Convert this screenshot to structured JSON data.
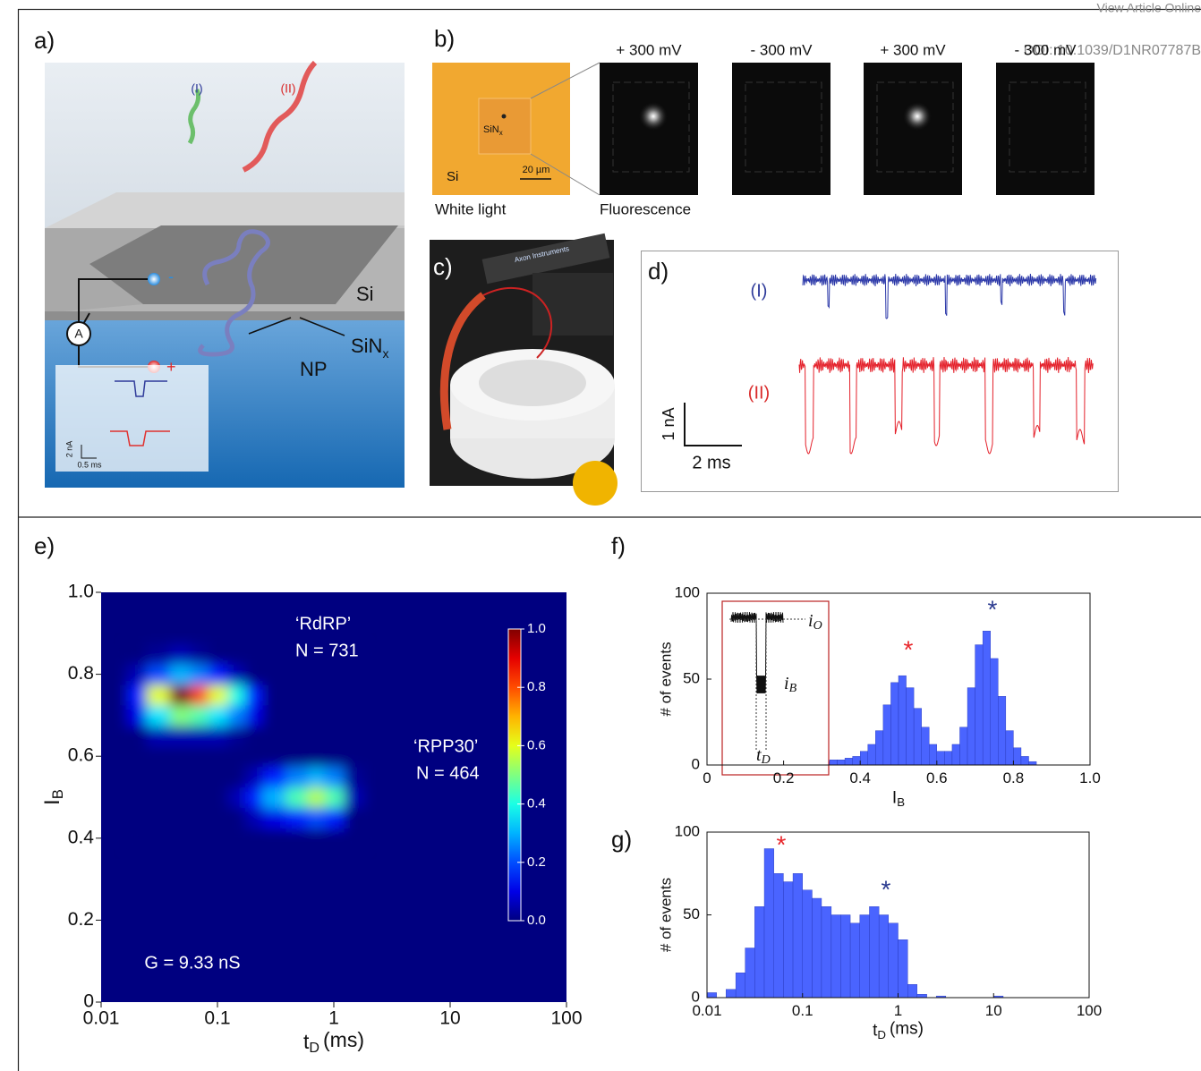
{
  "header": {
    "link": "View Article Online",
    "doi": "DOI: 10.1039/D1NR07787B"
  },
  "panel_a": {
    "label": "a)",
    "strand_1": "(I)",
    "strand_2": "(II)",
    "si": "Si",
    "sinx": "SiN",
    "sinx_sub": "x",
    "np": "NP",
    "ammeter": "A",
    "minus": "-",
    "plus": "+",
    "scale_y": "2 nA",
    "scale_x": "0.5 ms"
  },
  "panel_b": {
    "label": "b)",
    "si": "Si",
    "sinx": "SiN",
    "sinx_sub": "x",
    "scale": "20 µm",
    "white_light": "White light",
    "fluorescence": "Fluorescence",
    "voltages": [
      "+ 300 mV",
      "- 300 mV",
      "+ 300 mV",
      "- 300 mV"
    ]
  },
  "panel_c": {
    "label": "c)",
    "brand": "Axon Instruments"
  },
  "panel_d": {
    "label": "d)",
    "trace_1": "(I)",
    "trace_2": "(II)",
    "scale_y": "1 nA",
    "scale_x": "2 ms"
  },
  "chart_data": [
    {
      "panel": "e)",
      "type": "heatmap",
      "log_x": true,
      "colormap": "jet",
      "xlabel": "t",
      "xlabel_sub": "D",
      "xlabel_unit": "(ms)",
      "ylabel": "I",
      "ylabel_sub": "B",
      "x": [
        0.02,
        0.03,
        0.05,
        0.07,
        0.1,
        0.15,
        0.2,
        0.3,
        0.5,
        0.7,
        1,
        1.5
      ],
      "y": [
        0.4,
        0.45,
        0.5,
        0.55,
        0.6,
        0.65,
        0.7,
        0.75,
        0.8,
        0.85
      ],
      "z": [
        [
          0,
          0,
          0,
          0,
          0,
          0,
          0,
          0,
          0,
          0,
          0,
          0
        ],
        [
          0,
          0,
          0,
          0,
          0,
          0,
          0.05,
          0.1,
          0.15,
          0.2,
          0.15,
          0
        ],
        [
          0,
          0,
          0,
          0,
          0,
          0.05,
          0.15,
          0.3,
          0.45,
          0.55,
          0.45,
          0.05
        ],
        [
          0,
          0,
          0,
          0,
          0,
          0,
          0.05,
          0.15,
          0.25,
          0.3,
          0.25,
          0.02
        ],
        [
          0,
          0,
          0,
          0,
          0,
          0,
          0,
          0,
          0,
          0,
          0,
          0
        ],
        [
          0,
          0.05,
          0.05,
          0.05,
          0.05,
          0.02,
          0,
          0,
          0,
          0,
          0,
          0
        ],
        [
          0.1,
          0.35,
          0.5,
          0.45,
          0.35,
          0.25,
          0.1,
          0,
          0,
          0,
          0,
          0
        ],
        [
          0.15,
          0.6,
          1.0,
          0.8,
          0.6,
          0.4,
          0.15,
          0,
          0,
          0,
          0,
          0
        ],
        [
          0.05,
          0.2,
          0.3,
          0.25,
          0.15,
          0.05,
          0,
          0,
          0,
          0,
          0,
          0
        ],
        [
          0,
          0.02,
          0.05,
          0.02,
          0,
          0,
          0,
          0,
          0,
          0,
          0,
          0
        ]
      ],
      "xlim": [
        0.01,
        100
      ],
      "ylim": [
        0,
        1
      ],
      "xticks": [
        0.01,
        0.1,
        1,
        10,
        100
      ],
      "yticks": [
        0,
        0.2,
        0.4,
        0.6,
        0.8,
        {
          "value": 1,
          "label": "1.0"
        }
      ],
      "clim": [
        0,
        1
      ],
      "cticks": [
        {
          "value": 0,
          "label": "0.0"
        },
        0.2,
        0.4,
        0.6,
        0.8,
        {
          "value": 1,
          "label": "1.0"
        }
      ],
      "annotations": [
        "‘RdRP’",
        "N = 731",
        "‘RPP30’",
        "N = 464",
        "G = 9.33 nS"
      ]
    },
    {
      "panel": "f)",
      "type": "histogram",
      "log_x": false,
      "color": "#4a64ff",
      "xlabel": "I",
      "xlabel_sub": "B",
      "ylabel": "# of events",
      "bins": [
        0,
        0.02,
        0.04,
        0.06,
        0.08,
        0.1,
        0.12,
        0.14,
        0.16,
        0.18,
        0.2,
        0.22,
        0.24,
        0.26,
        0.28,
        0.3,
        0.32,
        0.34,
        0.36,
        0.38,
        0.4,
        0.42,
        0.44,
        0.46,
        0.48,
        0.5,
        0.52,
        0.54,
        0.56,
        0.58,
        0.6,
        0.62,
        0.64,
        0.66,
        0.68,
        0.7,
        0.72,
        0.74,
        0.76,
        0.78,
        0.8,
        0.82,
        0.84,
        0.86,
        0.88,
        0.9,
        0.92,
        0.94,
        0.96,
        0.98,
        1.0
      ],
      "values": [
        0,
        0,
        0,
        0,
        0,
        0,
        1,
        1,
        0,
        1,
        1,
        1,
        2,
        1,
        2,
        2,
        3,
        3,
        4,
        5,
        8,
        12,
        20,
        35,
        48,
        52,
        45,
        33,
        22,
        12,
        8,
        8,
        12,
        22,
        45,
        70,
        78,
        62,
        40,
        20,
        10,
        5,
        2,
        0,
        0,
        0,
        0,
        0,
        0,
        0
      ],
      "xlim": [
        0,
        1
      ],
      "ylim": [
        0,
        100
      ],
      "xticks": [
        0,
        0.2,
        0.4,
        0.6,
        0.8,
        {
          "value": 1,
          "label": "1.0"
        }
      ],
      "yticks": [
        0,
        50,
        100
      ],
      "annotations": [
        {
          "text": "*",
          "color": "#e8262b"
        },
        {
          "text": "*",
          "color": "#2a3a8f"
        }
      ],
      "inset": {
        "io": "i",
        "io_sub": "O",
        "ib": "i",
        "ib_sub": "B",
        "td": "t",
        "td_sub": "D"
      }
    },
    {
      "panel": "g)",
      "type": "histogram",
      "log_x": true,
      "color": "#4a64ff",
      "xlabel": "t",
      "xlabel_sub": "D",
      "xlabel_unit": "(ms)",
      "ylabel": "# of events",
      "bins": [
        0.01,
        0.0126,
        0.0158,
        0.02,
        0.0251,
        0.0316,
        0.0398,
        0.0501,
        0.0631,
        0.0794,
        0.1,
        0.126,
        0.158,
        0.2,
        0.251,
        0.316,
        0.398,
        0.501,
        0.631,
        0.794,
        1,
        1.26,
        1.58,
        2,
        2.51,
        3.16,
        3.98,
        5.01,
        6.31,
        7.94,
        10,
        12.6,
        15.8,
        20,
        25.1,
        31.6,
        39.8,
        50.1,
        63.1,
        79.4,
        100
      ],
      "values": [
        3,
        0,
        5,
        15,
        30,
        55,
        90,
        75,
        70,
        75,
        65,
        60,
        55,
        50,
        50,
        45,
        50,
        55,
        50,
        45,
        35,
        8,
        2,
        0,
        1,
        0,
        0,
        0,
        0,
        0,
        1,
        0,
        0,
        0,
        0,
        0,
        0,
        0,
        0,
        0
      ],
      "xlim": [
        0.01,
        100
      ],
      "ylim": [
        0,
        100
      ],
      "xticks": [
        0.01,
        0.1,
        1,
        10,
        100
      ],
      "yticks": [
        0,
        50,
        100
      ],
      "annotations": [
        {
          "text": "*",
          "color": "#e8262b"
        },
        {
          "text": "*",
          "color": "#2a3a8f"
        }
      ]
    }
  ]
}
